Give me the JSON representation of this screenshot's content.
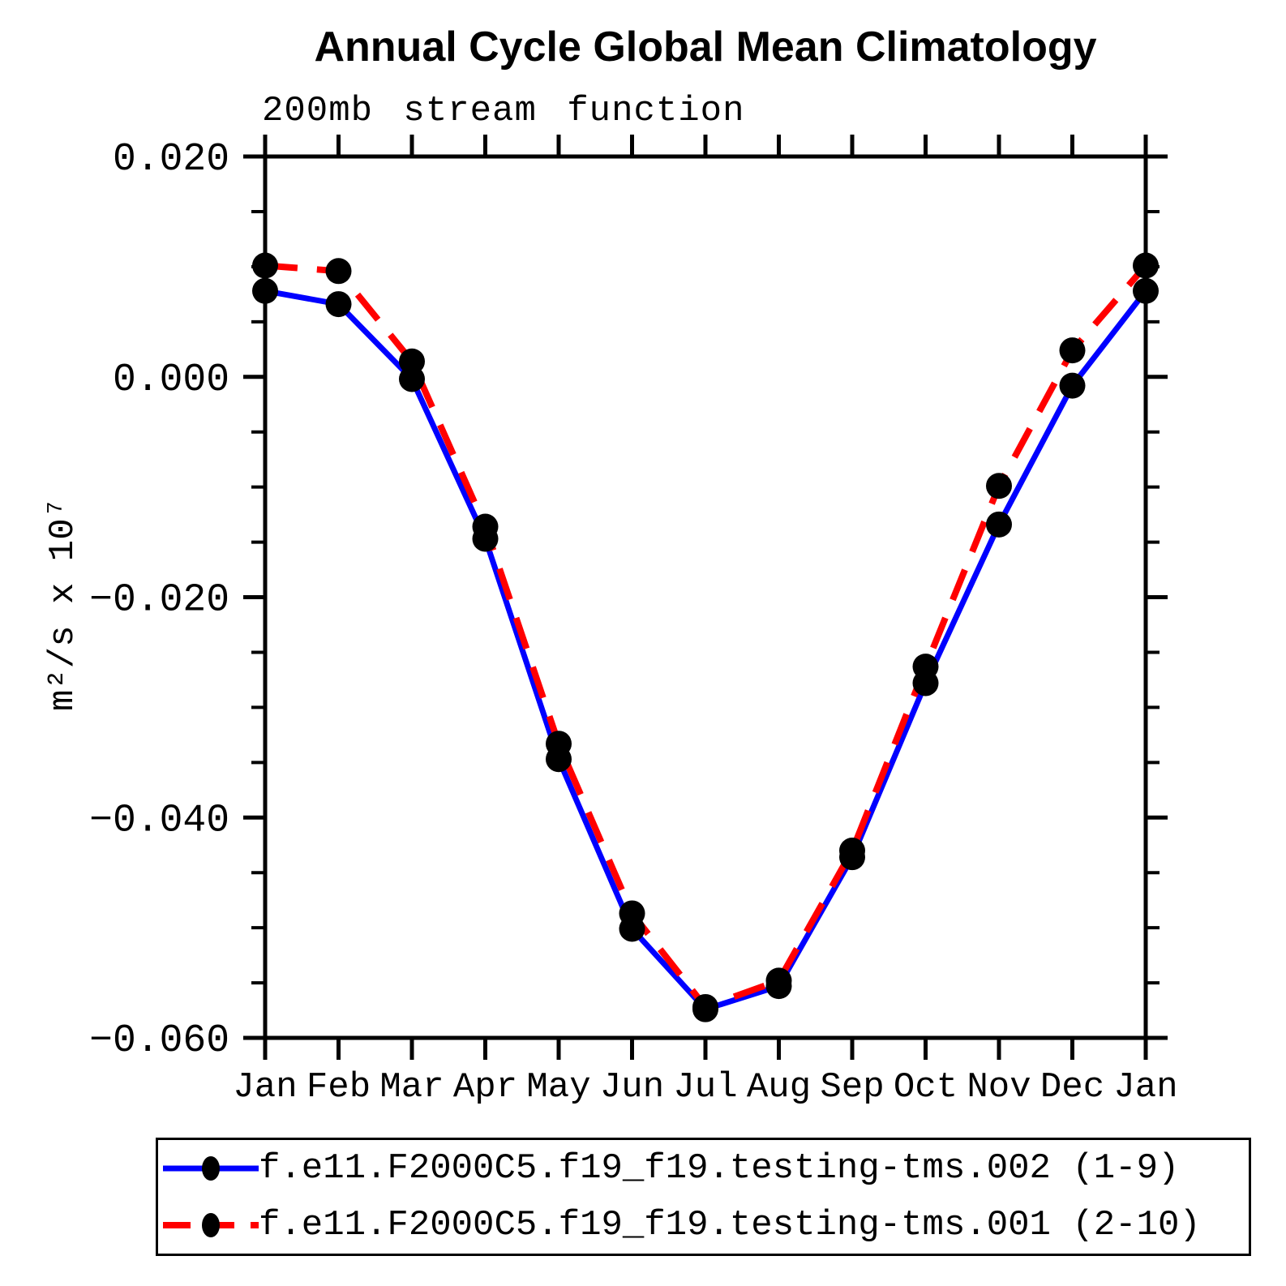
{
  "header": {
    "title": "Annual Cycle Global Mean Climatology",
    "subtitle": "200mb stream function"
  },
  "chart_data": {
    "type": "line",
    "title": "Annual Cycle Global Mean Climatology",
    "subtitle": "200mb stream function",
    "xlabel": "",
    "ylabel": "m²/s x 10⁷",
    "categories": [
      "Jan",
      "Feb",
      "Mar",
      "Apr",
      "May",
      "Jun",
      "Jul",
      "Aug",
      "Sep",
      "Oct",
      "Nov",
      "Dec",
      "Jan"
    ],
    "ylim": [
      -0.06,
      0.02
    ],
    "ytick_major": [
      0.02,
      0.0,
      -0.02,
      -0.04,
      -0.06
    ],
    "ytick_labels": [
      "0.020",
      "0.000",
      "−0.020",
      "−0.040",
      "−0.060"
    ],
    "ytick_minor_step": 0.005,
    "grid": false,
    "legend_position": "bottom",
    "marker_color": "#000000",
    "series": [
      {
        "name": "f.e11.F2000C5.f19_f19.testing-tms.002 (1-9)",
        "color": "#0000ff",
        "style": "solid",
        "marker": "circle",
        "values": [
          0.0078,
          0.0066,
          -0.0002,
          -0.0147,
          -0.0347,
          -0.0501,
          -0.0574,
          -0.0553,
          -0.0436,
          -0.0278,
          -0.0134,
          -0.0008,
          0.0078
        ]
      },
      {
        "name": "f.e11.F2000C5.f19_f19.testing-tms.001 (2-10)",
        "color": "#ff0000",
        "style": "dashed",
        "marker": "circle",
        "values": [
          0.0101,
          0.0096,
          0.0014,
          -0.0136,
          -0.0333,
          -0.0487,
          -0.0572,
          -0.0548,
          -0.043,
          -0.0263,
          -0.0099,
          0.0024,
          0.0101
        ]
      }
    ]
  }
}
